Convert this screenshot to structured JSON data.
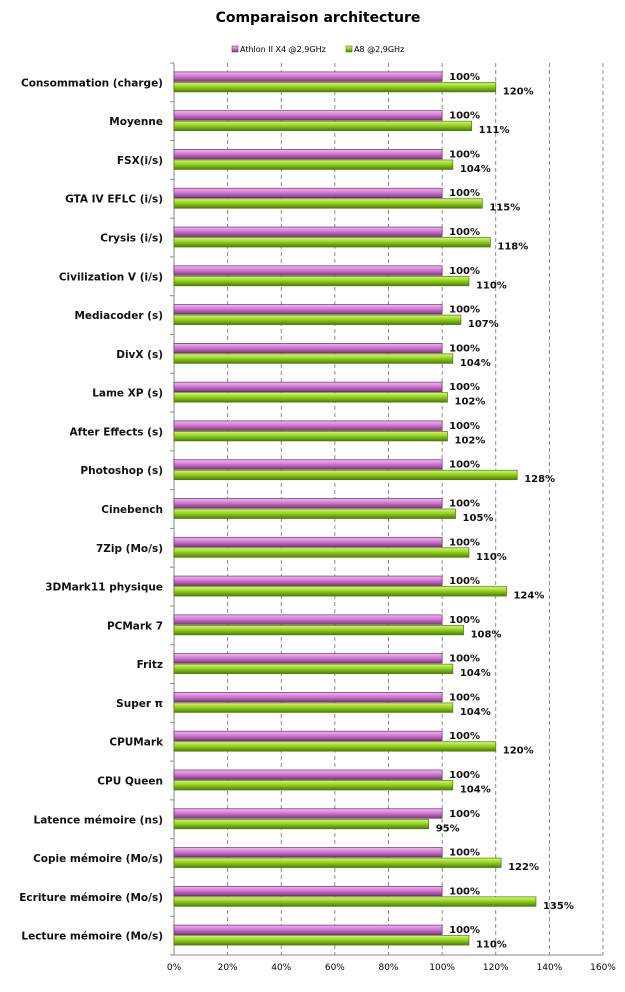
{
  "chart_data": {
    "type": "bar",
    "orientation": "horizontal",
    "title": "Comparaison architecture",
    "xlabel": "",
    "ylabel": "",
    "xlim": [
      0,
      160
    ],
    "x_ticks": [
      "0%",
      "20%",
      "40%",
      "60%",
      "80%",
      "100%",
      "120%",
      "140%",
      "160%"
    ],
    "grid": true,
    "legend_position": "top",
    "categories": [
      "Consommation (charge)",
      "Moyenne",
      "FSX(i/s)",
      "GTA IV EFLC (i/s)",
      "Crysis (i/s)",
      "Civilization V (i/s)",
      "Mediacoder (s)",
      "DivX (s)",
      "Lame XP (s)",
      "After Effects (s)",
      "Photoshop (s)",
      "Cinebench",
      "7Zip (Mo/s)",
      "3DMark11 physique",
      "PCMark 7",
      "Fritz",
      "Super π",
      "CPUMark",
      "CPU Queen",
      "Latence mémoire (ns)",
      "Copie mémoire (Mo/s)",
      "Ecriture mémoire (Mo/s)",
      "Lecture mémoire (Mo/s)"
    ],
    "series": [
      {
        "name": "Athlon II X4 @2,9GHz",
        "color": "#c266c2",
        "values": [
          100,
          100,
          100,
          100,
          100,
          100,
          100,
          100,
          100,
          100,
          100,
          100,
          100,
          100,
          100,
          100,
          100,
          100,
          100,
          100,
          100,
          100,
          100
        ]
      },
      {
        "name": "A8 @2,9GHz",
        "color": "#8fd11e",
        "values": [
          120,
          111,
          104,
          115,
          118,
          110,
          107,
          104,
          102,
          102,
          128,
          105,
          110,
          124,
          108,
          104,
          104,
          120,
          104,
          95,
          122,
          135,
          110
        ]
      }
    ],
    "value_suffix": "%"
  }
}
